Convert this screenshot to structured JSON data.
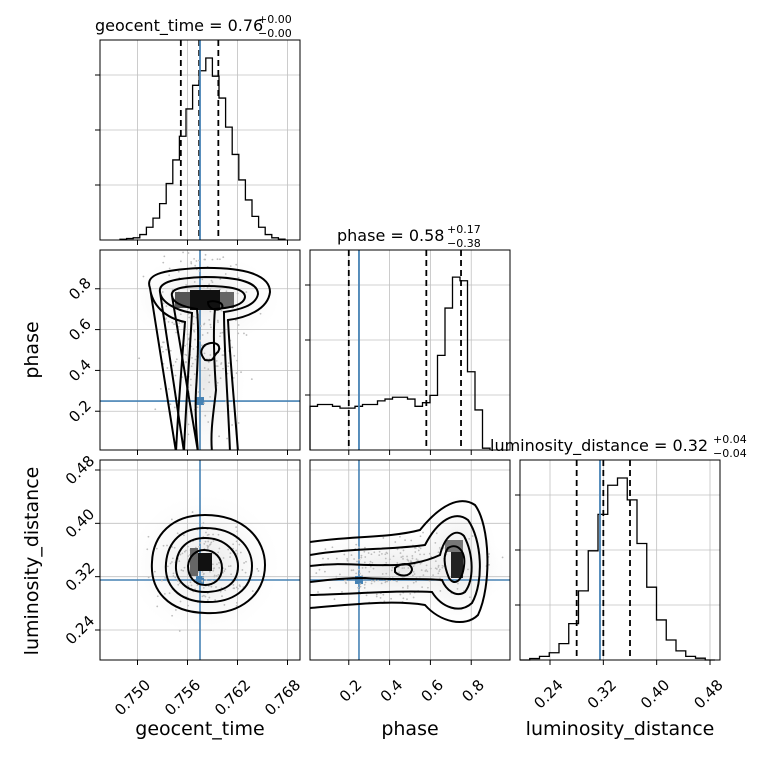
{
  "chart_data": {
    "type": "corner",
    "parameters": [
      "geocent_time",
      "phase",
      "luminosity_distance"
    ],
    "truths": {
      "geocent_time": 0.7575,
      "phase": 0.25,
      "luminosity_distance": 0.315
    },
    "ranges": {
      "geocent_time": [
        0.7455,
        0.7695
      ],
      "phase": [
        0.01,
        0.99
      ],
      "luminosity_distance": [
        0.195,
        0.495
      ]
    },
    "titles": [
      {
        "param": "geocent_time",
        "base": "geocent_time = 0.76",
        "plus": "+0.00",
        "minus": "−0.00"
      },
      {
        "param": "phase",
        "base": "phase = 0.58",
        "plus": "+0.17",
        "minus": "−0.38"
      },
      {
        "param": "luminosity_distance",
        "base": "luminosity_distance = 0.32",
        "plus": "+0.04",
        "minus": "−0.04"
      }
    ],
    "quantiles": {
      "geocent_time": [
        0.7552,
        0.7574,
        0.7597
      ],
      "phase": [
        0.2,
        0.58,
        0.75
      ],
      "luminosity_distance": [
        0.28,
        0.32,
        0.36
      ]
    },
    "ticks": {
      "geocent_time": [
        "0.750",
        "0.756",
        "0.762",
        "0.768"
      ],
      "phase": [
        "0.2",
        "0.4",
        "0.6",
        "0.8"
      ],
      "luminosity_distance": [
        "0.24",
        "0.32",
        "0.40",
        "0.48"
      ]
    },
    "axis_labels": {
      "x": [
        "geocent_time",
        "phase",
        "luminosity_distance"
      ],
      "y": [
        "phase",
        "luminosity_distance"
      ]
    },
    "histograms": {
      "geocent_time": [
        0.004,
        0.008,
        0.012,
        0.03,
        0.07,
        0.12,
        0.2,
        0.31,
        0.44,
        0.57,
        0.72,
        0.85,
        0.93,
        1.0,
        0.9,
        0.78,
        0.62,
        0.47,
        0.33,
        0.22,
        0.13,
        0.07,
        0.03,
        0.012,
        0.005
      ],
      "phase": [
        0.24,
        0.25,
        0.25,
        0.24,
        0.23,
        0.23,
        0.24,
        0.25,
        0.25,
        0.27,
        0.28,
        0.29,
        0.29,
        0.28,
        0.24,
        0.26,
        0.3,
        0.52,
        0.78,
        0.95,
        0.93,
        0.43,
        0.22,
        0.01
      ],
      "luminosity_distance": [
        0.0,
        0.008,
        0.02,
        0.04,
        0.09,
        0.2,
        0.38,
        0.6,
        0.8,
        0.96,
        1.0,
        0.88,
        0.64,
        0.4,
        0.22,
        0.11,
        0.05,
        0.02,
        0.01,
        0.0
      ]
    },
    "grid": true,
    "colors": {
      "truth": "#4682b4",
      "contour": "#000000",
      "grid": "#c0c0c0"
    }
  }
}
